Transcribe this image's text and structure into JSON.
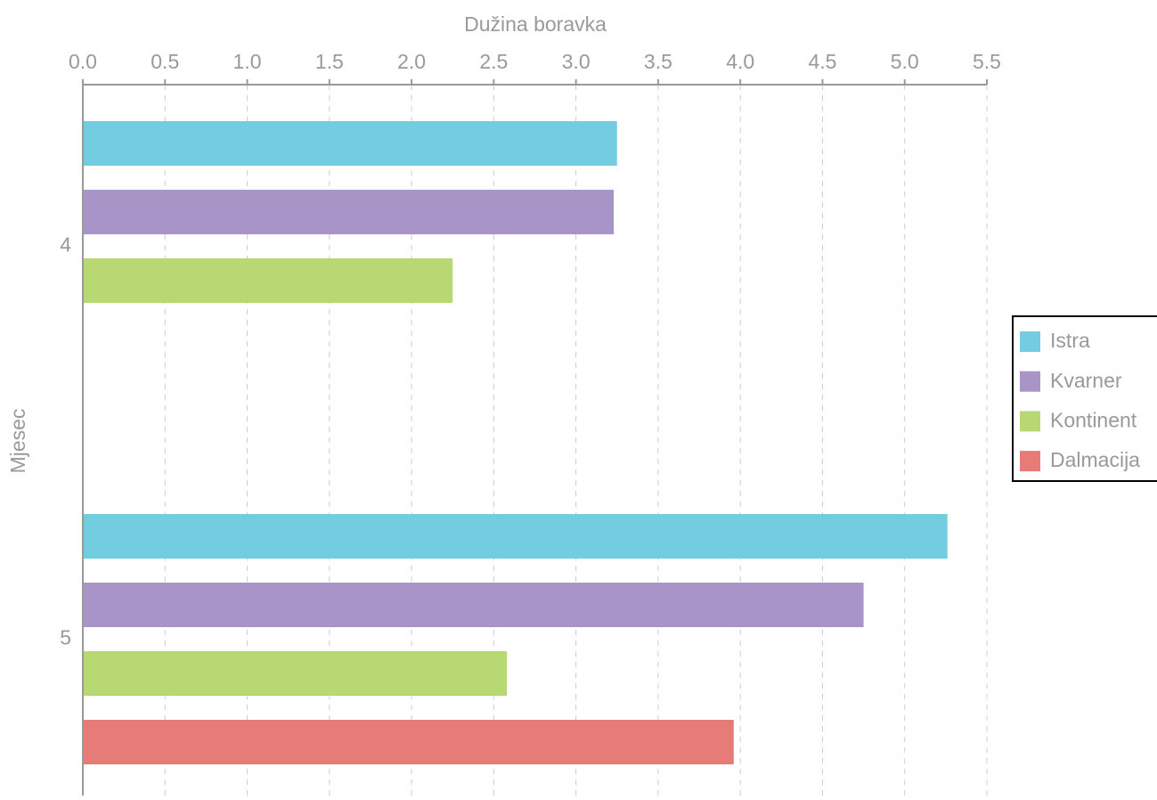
{
  "chart_data": {
    "type": "bar",
    "orientation": "horizontal",
    "x_label": "Dužina boravka",
    "y_label": "Mjesec",
    "categories": [
      "4",
      "5"
    ],
    "series": [
      {
        "name": "Istra",
        "color": "#72cde0",
        "values": [
          3.25,
          5.26
        ]
      },
      {
        "name": "Kvarner",
        "color": "#a994c8",
        "values": [
          3.23,
          4.75
        ]
      },
      {
        "name": "Kontinent",
        "color": "#b8d874",
        "values": [
          2.25,
          2.58
        ]
      },
      {
        "name": "Dalmacija",
        "color": "#e77b78",
        "values": [
          null,
          3.96
        ]
      }
    ],
    "xlim": [
      0,
      5.5
    ],
    "xticks": [
      {
        "value": 0,
        "label": "0.0"
      },
      0.5,
      {
        "value": 1,
        "label": "1.0"
      },
      1.5,
      {
        "value": 2,
        "label": "2.0"
      },
      2.5,
      {
        "value": 3,
        "label": "3.0"
      },
      3.5,
      {
        "value": 4,
        "label": "4.0"
      },
      4.5,
      {
        "value": 5,
        "label": "5.0"
      },
      5.5
    ],
    "grid": true,
    "legend": "right"
  }
}
